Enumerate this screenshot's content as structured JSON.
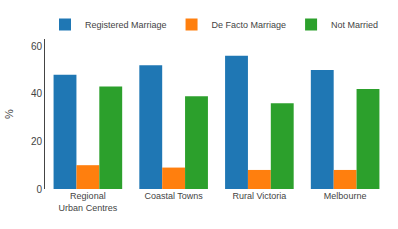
{
  "chart_data": {
    "type": "bar",
    "categories": [
      "Regional\nUrban Centres",
      "Coastal Towns",
      "Rural Victoria",
      "Melbourne"
    ],
    "series": [
      {
        "name": "Registered Marriage",
        "values": [
          48,
          52,
          56,
          50
        ]
      },
      {
        "name": "De Facto Marriage",
        "values": [
          10,
          9,
          8,
          8
        ]
      },
      {
        "name": "Not Married",
        "values": [
          43,
          39,
          36,
          42
        ]
      }
    ],
    "ylabel": "%",
    "ylim": [
      0,
      63
    ],
    "yticks": [
      0,
      20,
      40,
      60
    ],
    "grid": false,
    "legend": "upper left"
  }
}
